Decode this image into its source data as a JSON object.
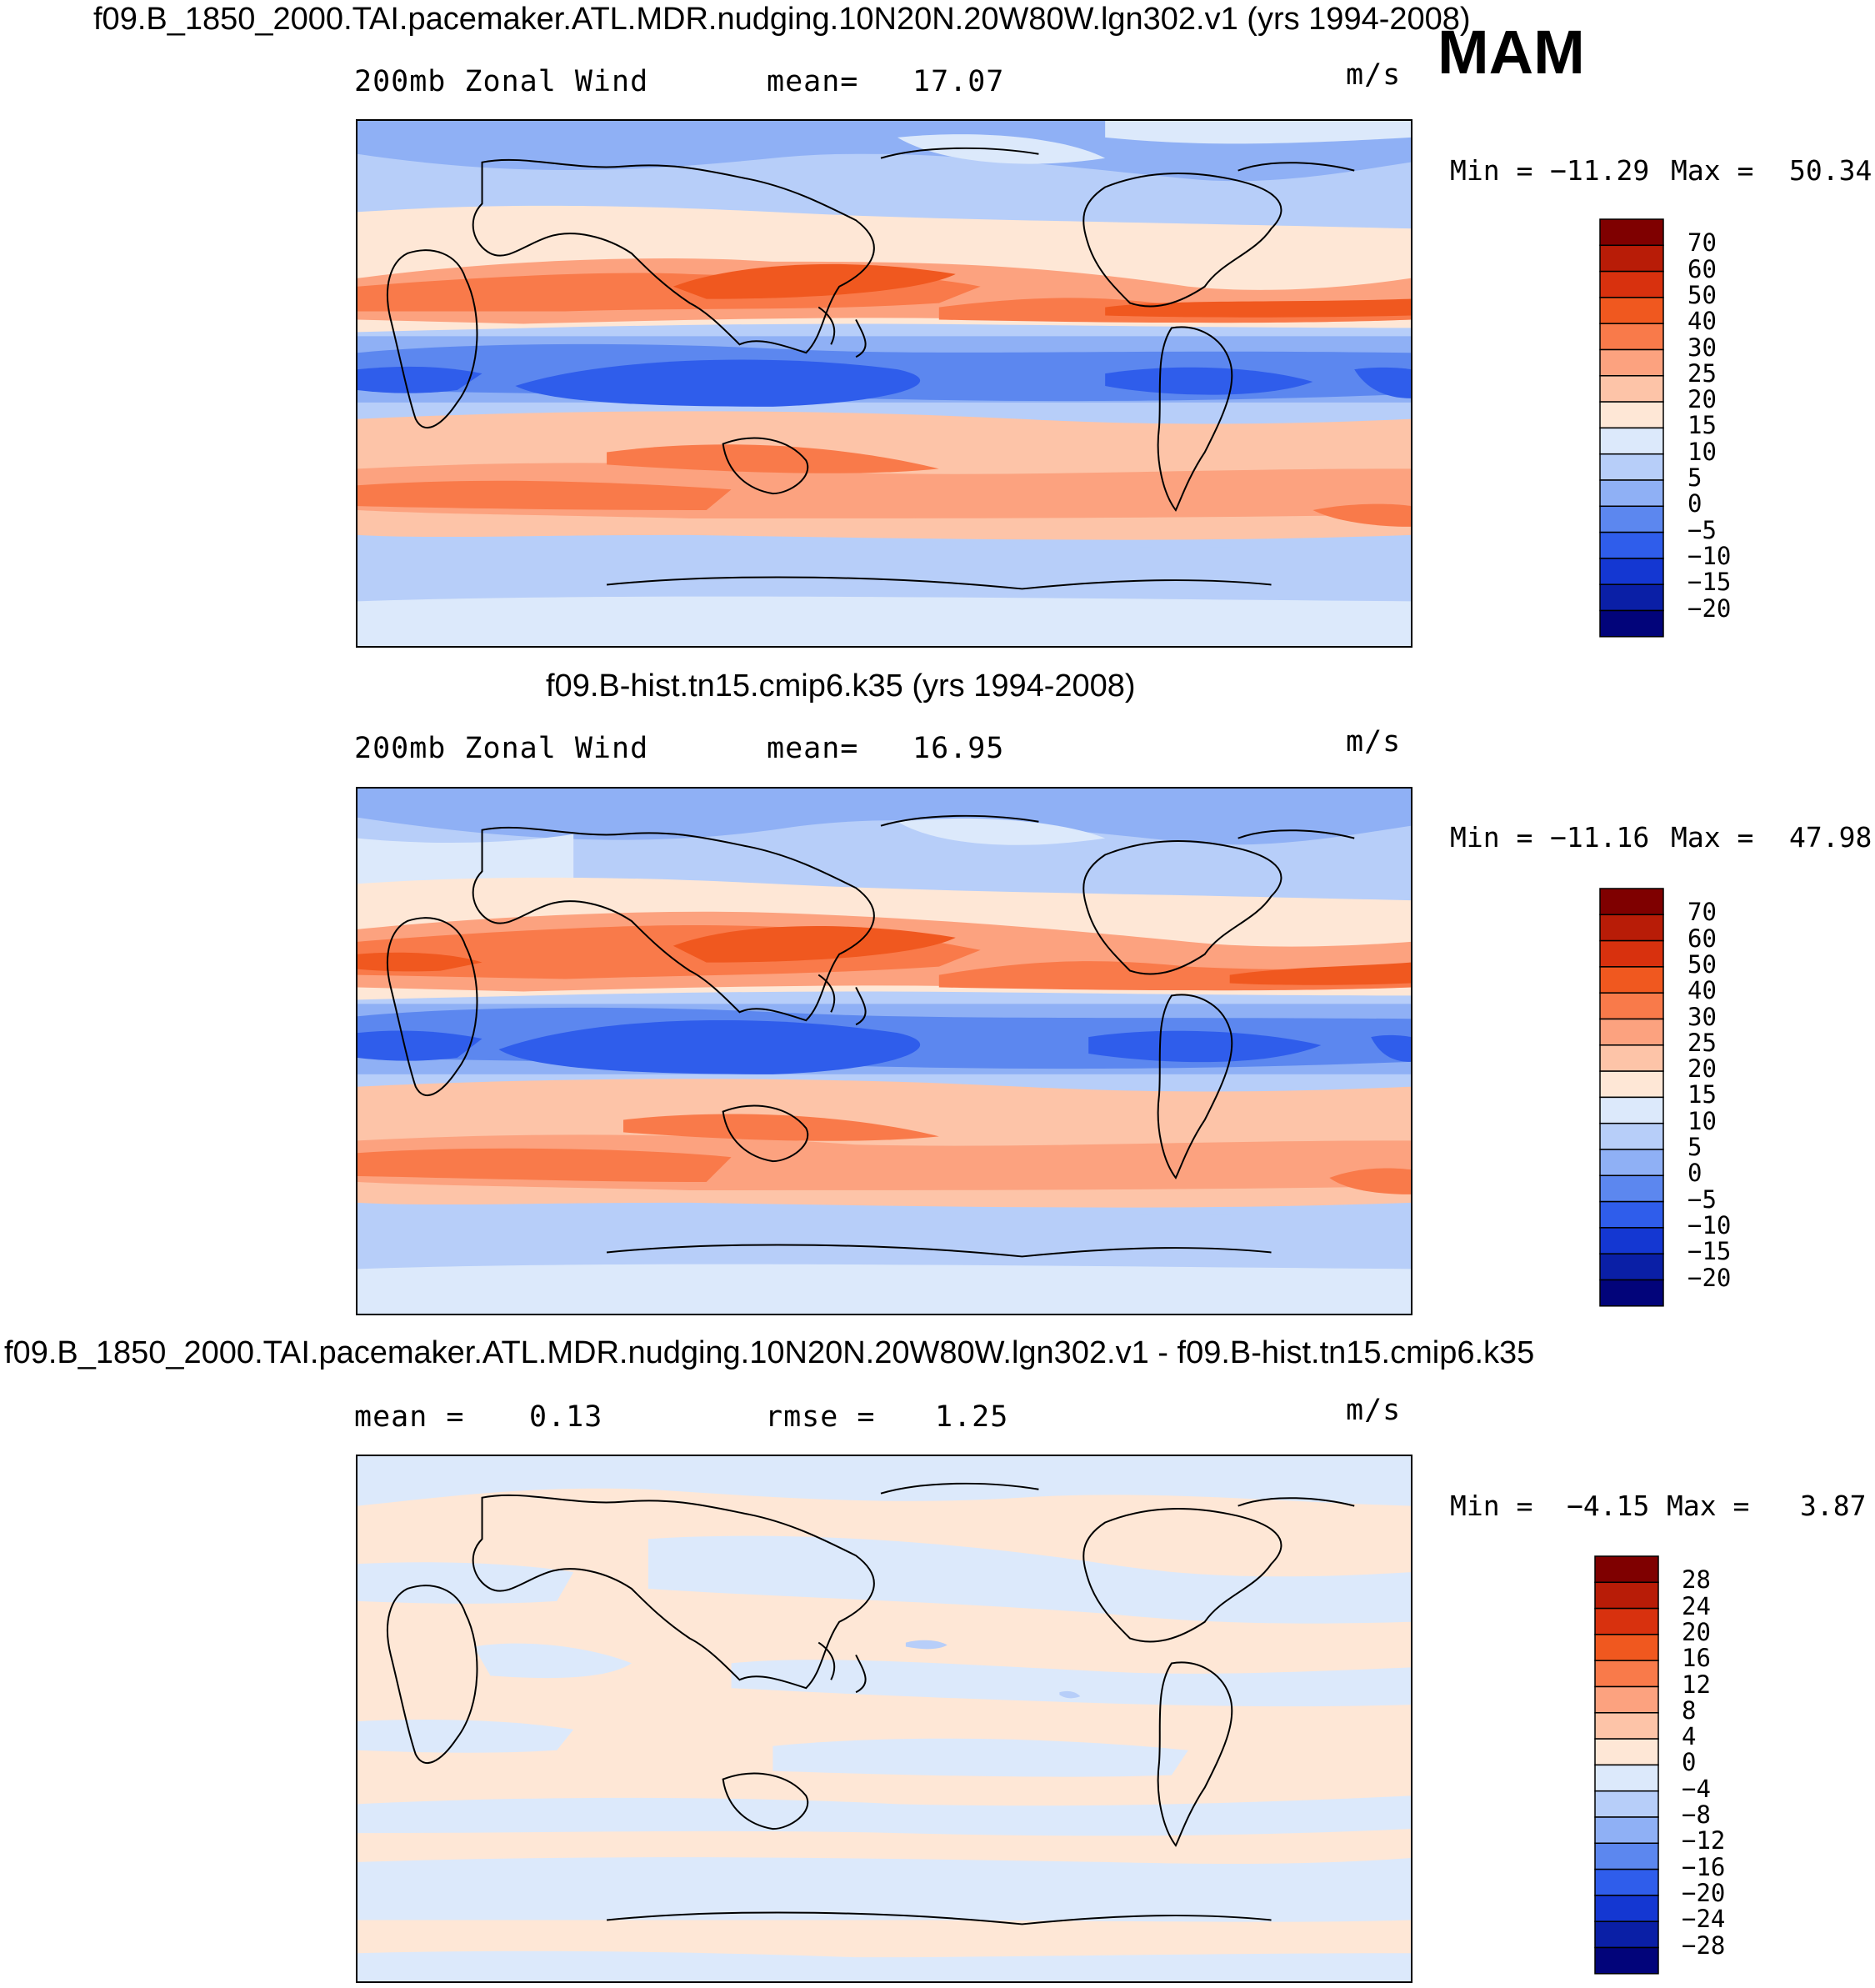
{
  "season": "MAM",
  "units": "m/s",
  "panels": [
    {
      "title": "f09.B_1850_2000.TAI.pacemaker.ATL.MDR.nudging.10N20N.20W80W.lgn302.v1 (yrs 1994-2008)",
      "left_label": "200mb  Zonal  Wind",
      "stat_label": "mean=",
      "stat_value": "17.07",
      "units": "m/s",
      "min_label": "Min  =",
      "min_value": "−11.29",
      "max_label": "Max  =",
      "max_value": "50.34",
      "colorbar": {
        "labels": [
          "70",
          "60",
          "50",
          "40",
          "30",
          "25",
          "20",
          "15",
          "10",
          "5",
          "0",
          "−5",
          "−10",
          "−15",
          "−20"
        ],
        "colors": [
          "#7f0000",
          "#b81c07",
          "#d8310e",
          "#f0581f",
          "#f97a4a",
          "#fca27f",
          "#fdc4a8",
          "#fee7d6",
          "#dce9fb",
          "#b7cef9",
          "#8fb0f5",
          "#5c87ef",
          "#2f5deb",
          "#1437d2",
          "#0a1fa6",
          "#02047a"
        ]
      },
      "field": "wind"
    },
    {
      "title": "f09.B-hist.tn15.cmip6.k35 (yrs 1994-2008)",
      "left_label": "200mb  Zonal  Wind",
      "stat_label": "mean=",
      "stat_value": "16.95",
      "units": "m/s",
      "min_label": "Min  =",
      "min_value": "−11.16",
      "max_label": "Max  =",
      "max_value": "47.98",
      "colorbar": {
        "labels": [
          "70",
          "60",
          "50",
          "40",
          "30",
          "25",
          "20",
          "15",
          "10",
          "5",
          "0",
          "−5",
          "−10",
          "−15",
          "−20"
        ],
        "colors": [
          "#7f0000",
          "#b81c07",
          "#d8310e",
          "#f0581f",
          "#f97a4a",
          "#fca27f",
          "#fdc4a8",
          "#fee7d6",
          "#dce9fb",
          "#b7cef9",
          "#8fb0f5",
          "#5c87ef",
          "#2f5deb",
          "#1437d2",
          "#0a1fa6",
          "#02047a"
        ]
      },
      "field": "wind"
    },
    {
      "title": "f09.B_1850_2000.TAI.pacemaker.ATL.MDR.nudging.10N20N.20W80W.lgn302.v1 - f09.B-hist.tn15.cmip6.k35",
      "left_label": "mean  =",
      "left_value": "0.13",
      "stat_label": "rmse  =",
      "stat_value": "1.25",
      "units": "m/s",
      "min_label": "Min  =",
      "min_value": "−4.15",
      "max_label": "Max  =",
      "max_value": "3.87",
      "colorbar": {
        "labels": [
          "28",
          "24",
          "20",
          "16",
          "12",
          "8",
          "4",
          "0",
          "−4",
          "−8",
          "−12",
          "−16",
          "−20",
          "−24",
          "−28"
        ],
        "colors": [
          "#7f0000",
          "#b81c07",
          "#d8310e",
          "#f0581f",
          "#f97a4a",
          "#fca27f",
          "#fdc4a8",
          "#fee7d6",
          "#dce9fb",
          "#b7cef9",
          "#8fb0f5",
          "#5c87ef",
          "#2f5deb",
          "#1437d2",
          "#0a1fa6",
          "#02047a"
        ]
      },
      "field": "diff"
    }
  ]
}
